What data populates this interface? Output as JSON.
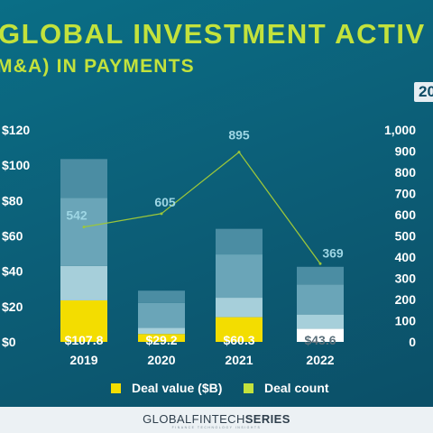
{
  "header": {
    "title": "GLOBAL INVESTMENT ACTIV",
    "subtitle": "M&A) IN PAYMENTS",
    "year_tag": "20"
  },
  "chart_data": {
    "type": "bar",
    "title": "GLOBAL INVESTMENT ACTIV",
    "subtitle": "M&A) IN PAYMENTS",
    "categories": [
      "2019",
      "2020",
      "2021",
      "2022"
    ],
    "series": [
      {
        "name": "Deal value ($B)",
        "type": "bar",
        "axis": "left",
        "values": [
          107.8,
          29.2,
          60.3,
          43.6
        ],
        "labels": [
          "$107.8",
          "$29.2",
          "$60.3",
          "$43.6"
        ],
        "segments": [
          [
            23.5,
            19.5,
            38.5,
            22.0
          ],
          [
            4.5,
            3.5,
            14.0,
            7.0
          ],
          [
            14.0,
            11.0,
            24.5,
            14.5
          ],
          [
            7.5,
            8.0,
            17.0,
            10.0
          ]
        ],
        "highlight_colors": [
          "#f3dd00",
          "#f3dd00",
          "#f3dd00",
          "#ffffff"
        ],
        "label_colors": [
          "#ffffff",
          "#ffffff",
          "#ffffff",
          "#5a6f7a"
        ]
      },
      {
        "name": "Deal count",
        "type": "line",
        "axis": "right",
        "values": [
          542,
          605,
          895,
          369
        ],
        "labels": [
          "542",
          "605",
          "895",
          "369"
        ]
      }
    ],
    "left_axis": {
      "ticks": [
        "$0",
        "$20",
        "$40",
        "$60",
        "$80",
        "$100",
        "$120"
      ],
      "range": [
        0,
        120
      ]
    },
    "right_axis": {
      "ticks": [
        "0",
        "100",
        "200",
        "300",
        "400",
        "500",
        "600",
        "700",
        "800",
        "900",
        "1,000"
      ],
      "range": [
        0,
        1000
      ]
    },
    "legend": [
      {
        "label": "Deal value ($B)",
        "color": "#f3dd00"
      },
      {
        "label": "Deal count",
        "color": "#c3e23c"
      }
    ],
    "segment_colors": [
      "#a6cfda",
      "#6aa5b8",
      "#4b8da3",
      "#3a7c93"
    ],
    "line_color": "#9cc63a",
    "legend_position": "bottom",
    "grid": false
  },
  "footer": {
    "brand_part1": "GLOBALFINTECH",
    "brand_part2": "SERIES",
    "tagline": "FINANCE TECHNOLOGY INSIGHTS"
  }
}
